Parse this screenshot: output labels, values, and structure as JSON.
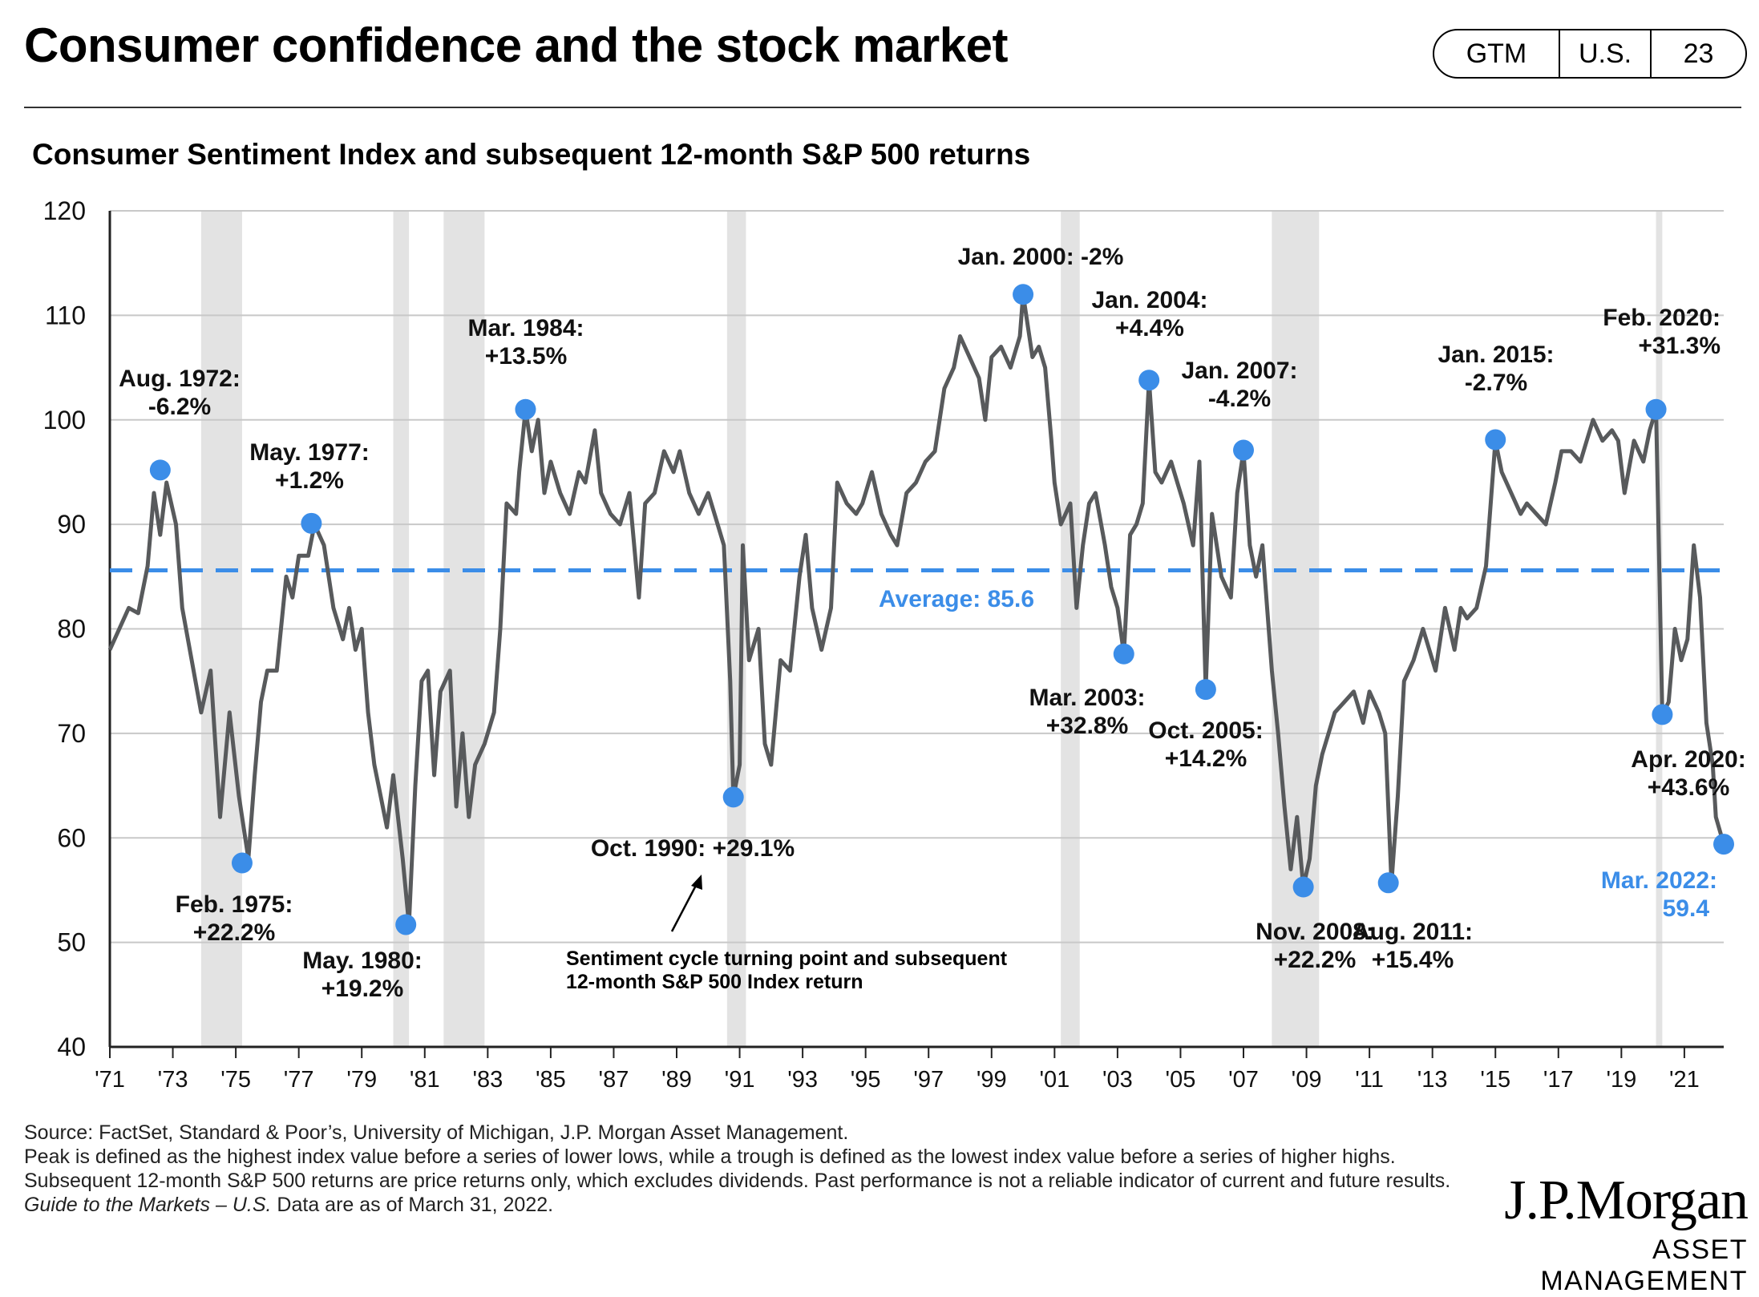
{
  "header": {
    "title": "Consumer confidence and the stock market",
    "badge": {
      "section": "GTM",
      "region": "U.S.",
      "page": "23"
    }
  },
  "colors": {
    "line": "#585a5c",
    "point": "#3b8de8",
    "average": "#3b8de8",
    "recession": "#e3e3e3",
    "grid": "#c8c8c8"
  },
  "chart_data": {
    "type": "line",
    "title": "Consumer Sentiment Index and subsequent 12-month S&P 500 returns",
    "xlim": [
      1971.0,
      2022.25
    ],
    "ylim": [
      40,
      120
    ],
    "yticks": [
      40,
      50,
      60,
      70,
      80,
      90,
      100,
      110,
      120
    ],
    "xticks": [
      {
        "x": 1971,
        "label": "'71"
      },
      {
        "x": 1973,
        "label": "'73"
      },
      {
        "x": 1975,
        "label": "'75"
      },
      {
        "x": 1977,
        "label": "'77"
      },
      {
        "x": 1979,
        "label": "'79"
      },
      {
        "x": 1981,
        "label": "'81"
      },
      {
        "x": 1983,
        "label": "'83"
      },
      {
        "x": 1985,
        "label": "'85"
      },
      {
        "x": 1987,
        "label": "'87"
      },
      {
        "x": 1989,
        "label": "'89"
      },
      {
        "x": 1991,
        "label": "'91"
      },
      {
        "x": 1993,
        "label": "'93"
      },
      {
        "x": 1995,
        "label": "'95"
      },
      {
        "x": 1997,
        "label": "'97"
      },
      {
        "x": 1999,
        "label": "'99"
      },
      {
        "x": 2001,
        "label": "'01"
      },
      {
        "x": 2003,
        "label": "'03"
      },
      {
        "x": 2005,
        "label": "'05"
      },
      {
        "x": 2007,
        "label": "'07"
      },
      {
        "x": 2009,
        "label": "'09"
      },
      {
        "x": 2011,
        "label": "'11"
      },
      {
        "x": 2013,
        "label": "'13"
      },
      {
        "x": 2015,
        "label": "'15"
      },
      {
        "x": 2017,
        "label": "'17"
      },
      {
        "x": 2019,
        "label": "'19"
      },
      {
        "x": 2021,
        "label": "'21"
      }
    ],
    "grid": true,
    "recessions": [
      [
        1973.9,
        1975.2
      ],
      [
        1980.0,
        1980.5
      ],
      [
        1981.6,
        1982.9
      ],
      [
        1990.6,
        1991.2
      ],
      [
        2001.2,
        2001.8
      ],
      [
        2007.9,
        2009.4
      ],
      [
        2020.1,
        2020.3
      ]
    ],
    "average": {
      "value": 85.6,
      "label": "Average: 85.6"
    },
    "series": [
      {
        "points": [
          [
            1971.0,
            78
          ],
          [
            1971.3,
            80
          ],
          [
            1971.6,
            82
          ],
          [
            1971.9,
            81.5
          ],
          [
            1972.2,
            86
          ],
          [
            1972.4,
            93
          ],
          [
            1972.6,
            89
          ],
          [
            1972.8,
            94
          ],
          [
            1973.1,
            90
          ],
          [
            1973.3,
            82
          ],
          [
            1973.6,
            77
          ],
          [
            1973.9,
            72
          ],
          [
            1974.2,
            76
          ],
          [
            1974.5,
            62
          ],
          [
            1974.8,
            72
          ],
          [
            1975.1,
            64
          ],
          [
            1975.4,
            58
          ],
          [
            1975.6,
            66
          ],
          [
            1975.8,
            73
          ],
          [
            1976.0,
            76
          ],
          [
            1976.3,
            76
          ],
          [
            1976.6,
            85
          ],
          [
            1976.8,
            83
          ],
          [
            1977.0,
            87
          ],
          [
            1977.3,
            87
          ],
          [
            1977.5,
            90
          ],
          [
            1977.8,
            88
          ],
          [
            1978.1,
            82
          ],
          [
            1978.4,
            79
          ],
          [
            1978.6,
            82
          ],
          [
            1978.8,
            78
          ],
          [
            1979.0,
            80
          ],
          [
            1979.2,
            72
          ],
          [
            1979.4,
            67
          ],
          [
            1979.6,
            64
          ],
          [
            1979.8,
            61
          ],
          [
            1980.0,
            66
          ],
          [
            1980.3,
            58
          ],
          [
            1980.5,
            51.7
          ],
          [
            1980.7,
            65
          ],
          [
            1980.9,
            75
          ],
          [
            1981.1,
            76
          ],
          [
            1981.3,
            66
          ],
          [
            1981.5,
            74
          ],
          [
            1981.8,
            76
          ],
          [
            1982.0,
            63
          ],
          [
            1982.2,
            70
          ],
          [
            1982.4,
            62
          ],
          [
            1982.6,
            67
          ],
          [
            1982.9,
            69
          ],
          [
            1983.2,
            72
          ],
          [
            1983.4,
            80
          ],
          [
            1983.6,
            92
          ],
          [
            1983.9,
            91
          ],
          [
            1984.0,
            95
          ],
          [
            1984.2,
            101
          ],
          [
            1984.4,
            97
          ],
          [
            1984.6,
            100
          ],
          [
            1984.8,
            93
          ],
          [
            1985.0,
            96
          ],
          [
            1985.3,
            93
          ],
          [
            1985.6,
            91
          ],
          [
            1985.9,
            95
          ],
          [
            1986.1,
            94
          ],
          [
            1986.4,
            99
          ],
          [
            1986.6,
            93
          ],
          [
            1986.9,
            91
          ],
          [
            1987.2,
            90
          ],
          [
            1987.5,
            93
          ],
          [
            1987.8,
            83
          ],
          [
            1988.0,
            92
          ],
          [
            1988.3,
            93
          ],
          [
            1988.6,
            97
          ],
          [
            1988.9,
            95
          ],
          [
            1989.1,
            97
          ],
          [
            1989.4,
            93
          ],
          [
            1989.7,
            91
          ],
          [
            1990.0,
            93
          ],
          [
            1990.3,
            90
          ],
          [
            1990.5,
            88
          ],
          [
            1990.7,
            75
          ],
          [
            1990.8,
            63.9
          ],
          [
            1991.0,
            67
          ],
          [
            1991.1,
            88
          ],
          [
            1991.3,
            77
          ],
          [
            1991.6,
            80
          ],
          [
            1991.8,
            69
          ],
          [
            1992.0,
            67
          ],
          [
            1992.3,
            77
          ],
          [
            1992.6,
            76
          ],
          [
            1992.9,
            85
          ],
          [
            1993.1,
            89
          ],
          [
            1993.3,
            82
          ],
          [
            1993.6,
            78
          ],
          [
            1993.9,
            82
          ],
          [
            1994.1,
            94
          ],
          [
            1994.4,
            92
          ],
          [
            1994.7,
            91
          ],
          [
            1994.9,
            92
          ],
          [
            1995.2,
            95
          ],
          [
            1995.5,
            91
          ],
          [
            1995.8,
            89
          ],
          [
            1996.0,
            88
          ],
          [
            1996.3,
            93
          ],
          [
            1996.6,
            94
          ],
          [
            1996.9,
            96
          ],
          [
            1997.2,
            97
          ],
          [
            1997.5,
            103
          ],
          [
            1997.8,
            105
          ],
          [
            1998.0,
            108
          ],
          [
            1998.3,
            106
          ],
          [
            1998.6,
            104
          ],
          [
            1998.8,
            100
          ],
          [
            1999.0,
            106
          ],
          [
            1999.3,
            107
          ],
          [
            1999.6,
            105
          ],
          [
            1999.9,
            108
          ],
          [
            2000.0,
            112
          ],
          [
            2000.3,
            106
          ],
          [
            2000.5,
            107
          ],
          [
            2000.7,
            105
          ],
          [
            2000.9,
            98
          ],
          [
            2001.0,
            94
          ],
          [
            2001.2,
            90
          ],
          [
            2001.5,
            92
          ],
          [
            2001.7,
            82
          ],
          [
            2001.9,
            88
          ],
          [
            2002.1,
            92
          ],
          [
            2002.3,
            93
          ],
          [
            2002.6,
            88
          ],
          [
            2002.8,
            84
          ],
          [
            2003.0,
            82
          ],
          [
            2003.2,
            77.6
          ],
          [
            2003.4,
            89
          ],
          [
            2003.6,
            90
          ],
          [
            2003.8,
            92
          ],
          [
            2004.0,
            103.8
          ],
          [
            2004.2,
            95
          ],
          [
            2004.4,
            94
          ],
          [
            2004.7,
            96
          ],
          [
            2004.9,
            94
          ],
          [
            2005.1,
            92
          ],
          [
            2005.4,
            88
          ],
          [
            2005.6,
            96
          ],
          [
            2005.8,
            74.2
          ],
          [
            2006.0,
            91
          ],
          [
            2006.3,
            85
          ],
          [
            2006.6,
            83
          ],
          [
            2006.8,
            93
          ],
          [
            2007.0,
            97
          ],
          [
            2007.2,
            88
          ],
          [
            2007.4,
            85
          ],
          [
            2007.6,
            88
          ],
          [
            2007.9,
            76
          ],
          [
            2008.1,
            70
          ],
          [
            2008.3,
            63
          ],
          [
            2008.5,
            57
          ],
          [
            2008.7,
            62
          ],
          [
            2008.9,
            55.3
          ],
          [
            2009.1,
            58
          ],
          [
            2009.3,
            65
          ],
          [
            2009.5,
            68
          ],
          [
            2009.7,
            70
          ],
          [
            2009.9,
            72
          ],
          [
            2010.2,
            73
          ],
          [
            2010.5,
            74
          ],
          [
            2010.8,
            71
          ],
          [
            2011.0,
            74
          ],
          [
            2011.3,
            72
          ],
          [
            2011.5,
            70
          ],
          [
            2011.7,
            55.7
          ],
          [
            2011.9,
            64
          ],
          [
            2012.1,
            75
          ],
          [
            2012.4,
            77
          ],
          [
            2012.7,
            80
          ],
          [
            2012.9,
            78
          ],
          [
            2013.1,
            76
          ],
          [
            2013.4,
            82
          ],
          [
            2013.7,
            78
          ],
          [
            2013.9,
            82
          ],
          [
            2014.1,
            81
          ],
          [
            2014.4,
            82
          ],
          [
            2014.7,
            86
          ],
          [
            2015.0,
            98
          ],
          [
            2015.2,
            95
          ],
          [
            2015.5,
            93
          ],
          [
            2015.8,
            91
          ],
          [
            2016.0,
            92
          ],
          [
            2016.3,
            91
          ],
          [
            2016.6,
            90
          ],
          [
            2016.9,
            94
          ],
          [
            2017.1,
            97
          ],
          [
            2017.4,
            97
          ],
          [
            2017.7,
            96
          ],
          [
            2017.9,
            98
          ],
          [
            2018.1,
            100
          ],
          [
            2018.4,
            98
          ],
          [
            2018.7,
            99
          ],
          [
            2018.9,
            98
          ],
          [
            2019.1,
            93
          ],
          [
            2019.4,
            98
          ],
          [
            2019.7,
            96
          ],
          [
            2019.9,
            99
          ],
          [
            2020.1,
            101
          ],
          [
            2020.3,
            71.8
          ],
          [
            2020.5,
            73
          ],
          [
            2020.7,
            80
          ],
          [
            2020.9,
            77
          ],
          [
            2021.1,
            79
          ],
          [
            2021.3,
            88
          ],
          [
            2021.5,
            83
          ],
          [
            2021.7,
            71
          ],
          [
            2021.9,
            67
          ],
          [
            2022.0,
            62
          ],
          [
            2022.25,
            59.4
          ]
        ]
      }
    ],
    "annotations": [
      {
        "x": 1972.6,
        "y": 95.2,
        "label": "Aug. 1972:",
        "return": "-6.2%"
      },
      {
        "x": 1975.2,
        "y": 57.6,
        "label": "Feb. 1975:",
        "return": "+22.2%"
      },
      {
        "x": 1977.4,
        "y": 90.1,
        "label": "May. 1977:",
        "return": "+1.2%"
      },
      {
        "x": 1980.4,
        "y": 51.7,
        "label": "May. 1980:",
        "return": "+19.2%"
      },
      {
        "x": 1984.2,
        "y": 101.0,
        "label": "Mar. 1984:",
        "return": "+13.5%"
      },
      {
        "x": 1990.8,
        "y": 63.9,
        "label": "Oct. 1990: +29.1%",
        "return": ""
      },
      {
        "x": 2000.0,
        "y": 112.0,
        "label": "Jan. 2000: -2%",
        "return": ""
      },
      {
        "x": 2003.2,
        "y": 77.6,
        "label": "Mar. 2003:",
        "return": "+32.8%"
      },
      {
        "x": 2004.0,
        "y": 103.8,
        "label": "Jan. 2004:",
        "return": "+4.4%"
      },
      {
        "x": 2005.8,
        "y": 74.2,
        "label": "Oct. 2005:",
        "return": "+14.2%"
      },
      {
        "x": 2007.0,
        "y": 97.1,
        "label": "Jan. 2007:",
        "return": "-4.2%"
      },
      {
        "x": 2008.9,
        "y": 55.3,
        "label": "Nov. 2008:",
        "return": "+22.2%"
      },
      {
        "x": 2011.6,
        "y": 55.7,
        "label": "Aug. 2011:",
        "return": "+15.4%"
      },
      {
        "x": 2015.0,
        "y": 98.1,
        "label": "Jan. 2015:",
        "return": "-2.7%"
      },
      {
        "x": 2020.1,
        "y": 101.0,
        "label": "Feb. 2020:",
        "return": "+31.3%"
      },
      {
        "x": 2020.3,
        "y": 71.8,
        "label": "Apr. 2020:",
        "return": "+43.6%"
      },
      {
        "x": 2022.25,
        "y": 59.4,
        "label": "Mar. 2022:",
        "return": "59.4"
      }
    ],
    "note": {
      "line1": "Sentiment cycle turning point and subsequent",
      "line2": "12-month S&P 500 Index return"
    }
  },
  "footer": {
    "source": "Source: FactSet, Standard & Poor’s, University of Michigan, J.P. Morgan Asset Management.",
    "definition": "Peak is defined as the highest index value before a series of lower lows, while a trough is defined as the lowest index value before a series of higher highs. Subsequent 12-month S&P 500 returns are price returns only, which excludes dividends. Past performance is not a reliable indicator of current and future results.",
    "guide_title": "Guide to the Markets – U.S.",
    "asof": " Data are as of March 31, 2022."
  },
  "logo": {
    "name": "J.P.Morgan",
    "tagline": "ASSET MANAGEMENT"
  }
}
